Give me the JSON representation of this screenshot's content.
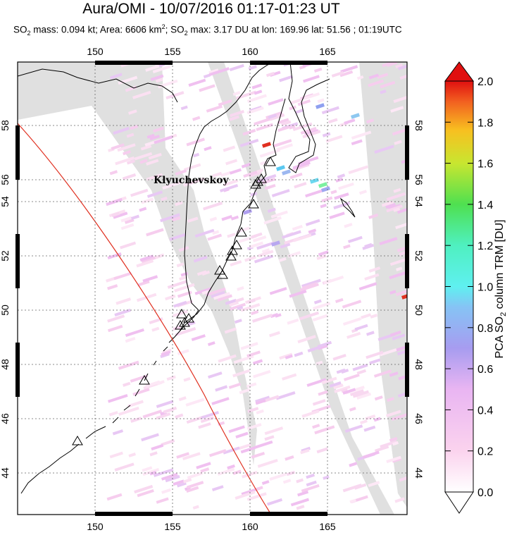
{
  "header": {
    "title": "Aura/OMI - 10/07/2016 01:17-01:23 UT",
    "subtitle": {
      "mass_prefix": "SO",
      "mass_text": " mass: 0.094 kt; Area: 6606 km",
      "area_sup": "2",
      "max_prefix": "; SO",
      "max_text": " max: 3.17 DU at lon: 169.96 lat: 51.56 ; 01:19UTC",
      "sub2": "2"
    }
  },
  "map": {
    "lon_ticks": [
      "150",
      "155",
      "160",
      "165"
    ],
    "lat_ticks": [
      "44",
      "46",
      "48",
      "50",
      "52",
      "54",
      "56",
      "58"
    ],
    "volcano_label": "Klyuchevskoy",
    "colors": {
      "land_outline": "#000000",
      "no_data": "#e0e0e0",
      "swath_edge": "#e03020"
    }
  },
  "colorbar": {
    "title_prefix": "PCA SO",
    "title_sub": "2",
    "title_suffix": " column TRM [DU]",
    "ticks": [
      "2.0",
      "1.8",
      "1.6",
      "1.4",
      "1.2",
      "1.0",
      "0.8",
      "0.6",
      "0.4",
      "0.2",
      "0.0"
    ],
    "range": [
      0.0,
      2.0
    ]
  }
}
